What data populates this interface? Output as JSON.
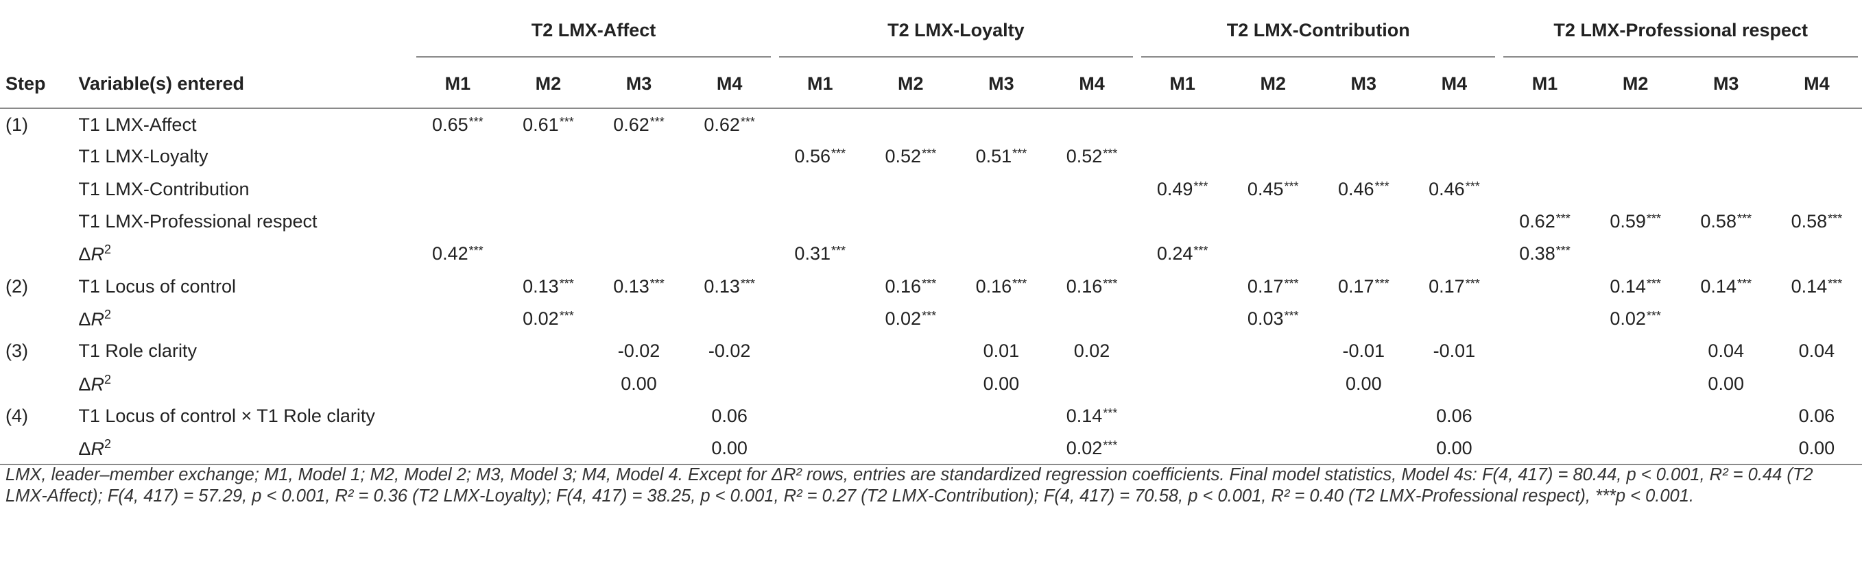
{
  "table": {
    "group_headers": [
      "T2 LMX-Affect",
      "T2 LMX-Loyalty",
      "T2 LMX-Contribution",
      "T2 LMX-Professional respect"
    ],
    "step_header": "Step",
    "variable_header": "Variable(s) entered",
    "model_headers": [
      "M1",
      "M2",
      "M3",
      "M4",
      "M1",
      "M2",
      "M3",
      "M4",
      "M1",
      "M2",
      "M3",
      "M4",
      "M1",
      "M2",
      "M3",
      "M4"
    ],
    "delta_r2_label": {
      "symbol": "ΔR",
      "sup": "2"
    },
    "rows": [
      {
        "step": "(1)",
        "variable": "T1 LMX-Affect",
        "values": [
          "0.65",
          "0.61",
          "0.62",
          "0.62",
          "",
          "",
          "",
          "",
          "",
          "",
          "",
          "",
          "",
          "",
          "",
          ""
        ],
        "sig": [
          "***",
          "***",
          "***",
          "***",
          "",
          "",
          "",
          "",
          "",
          "",
          "",
          "",
          "",
          "",
          "",
          ""
        ]
      },
      {
        "step": "",
        "variable": "T1 LMX-Loyalty",
        "values": [
          "",
          "",
          "",
          "",
          "0.56",
          "0.52",
          "0.51",
          "0.52",
          "",
          "",
          "",
          "",
          "",
          "",
          "",
          ""
        ],
        "sig": [
          "",
          "",
          "",
          "",
          "***",
          "***",
          "***",
          "***",
          "",
          "",
          "",
          "",
          "",
          "",
          "",
          ""
        ]
      },
      {
        "step": "",
        "variable": "T1 LMX-Contribution",
        "values": [
          "",
          "",
          "",
          "",
          "",
          "",
          "",
          "",
          "0.49",
          "0.45",
          "0.46",
          "0.46",
          "",
          "",
          "",
          ""
        ],
        "sig": [
          "",
          "",
          "",
          "",
          "",
          "",
          "",
          "",
          "***",
          "***",
          "***",
          "***",
          "",
          "",
          "",
          ""
        ]
      },
      {
        "step": "",
        "variable": "T1 LMX-Professional respect",
        "values": [
          "",
          "",
          "",
          "",
          "",
          "",
          "",
          "",
          "",
          "",
          "",
          "",
          "0.62",
          "0.59",
          "0.58",
          "0.58"
        ],
        "sig": [
          "",
          "",
          "",
          "",
          "",
          "",
          "",
          "",
          "",
          "",
          "",
          "",
          "***",
          "***",
          "***",
          "***"
        ]
      },
      {
        "step": "",
        "variable": "ΔR²",
        "is_delta": true,
        "values": [
          "0.42",
          "",
          "",
          "",
          "0.31",
          "",
          "",
          "",
          "0.24",
          "",
          "",
          "",
          "0.38",
          "",
          "",
          ""
        ],
        "sig": [
          "***",
          "",
          "",
          "",
          "***",
          "",
          "",
          "",
          "***",
          "",
          "",
          "",
          "***",
          "",
          "",
          ""
        ]
      },
      {
        "step": "(2)",
        "variable": "T1 Locus of control",
        "values": [
          "",
          "0.13",
          "0.13",
          "0.13",
          "",
          "0.16",
          "0.16",
          "0.16",
          "",
          "0.17",
          "0.17",
          "0.17",
          "",
          "0.14",
          "0.14",
          "0.14"
        ],
        "sig": [
          "",
          "***",
          "***",
          "***",
          "",
          "***",
          "***",
          "***",
          "",
          "***",
          "***",
          "***",
          "",
          "***",
          "***",
          "***"
        ]
      },
      {
        "step": "",
        "variable": "ΔR²",
        "is_delta": true,
        "values": [
          "",
          "0.02",
          "",
          "",
          "",
          "0.02",
          "",
          "",
          "",
          "0.03",
          "",
          "",
          "",
          "0.02",
          "",
          ""
        ],
        "sig": [
          "",
          "***",
          "",
          "",
          "",
          "***",
          "",
          "",
          "",
          "***",
          "",
          "",
          "",
          "***",
          "",
          ""
        ]
      },
      {
        "step": "(3)",
        "variable": "T1 Role clarity",
        "values": [
          "",
          "",
          "-0.02",
          "-0.02",
          "",
          "",
          "0.01",
          "0.02",
          "",
          "",
          "-0.01",
          "-0.01",
          "",
          "",
          "0.04",
          "0.04"
        ],
        "sig": [
          "",
          "",
          "",
          "",
          "",
          "",
          "",
          "",
          "",
          "",
          "",
          "",
          "",
          "",
          "",
          ""
        ]
      },
      {
        "step": "",
        "variable": "ΔR²",
        "is_delta": true,
        "values": [
          "",
          "",
          "0.00",
          "",
          "",
          "",
          "0.00",
          "",
          "",
          "",
          "0.00",
          "",
          "",
          "",
          "0.00",
          ""
        ],
        "sig": [
          "",
          "",
          "",
          "",
          "",
          "",
          "",
          "",
          "",
          "",
          "",
          "",
          "",
          "",
          "",
          ""
        ]
      },
      {
        "step": "(4)",
        "variable": "T1 Locus of control × T1 Role clarity",
        "values": [
          "",
          "",
          "",
          "0.06",
          "",
          "",
          "",
          "0.14",
          "",
          "",
          "",
          "0.06",
          "",
          "",
          "",
          "0.06"
        ],
        "sig": [
          "",
          "",
          "",
          "",
          "",
          "",
          "",
          "***",
          "",
          "",
          "",
          "",
          "",
          "",
          "",
          ""
        ]
      },
      {
        "step": "",
        "variable": "ΔR²",
        "is_delta": true,
        "values": [
          "",
          "",
          "",
          "0.00",
          "",
          "",
          "",
          "0.02",
          "",
          "",
          "",
          "0.00",
          "",
          "",
          "",
          "0.00"
        ],
        "sig": [
          "",
          "",
          "",
          "",
          "",
          "",
          "",
          "***",
          "",
          "",
          "",
          "",
          "",
          "",
          "",
          ""
        ]
      }
    ]
  },
  "footnote": "LMX, leader–member exchange; M1, Model 1; M2, Model 2; M3, Model 3; M4, Model 4. Except for ΔR² rows, entries are standardized regression coefficients. Final model statistics, Model 4s: F(4, 417) = 80.44, p < 0.001, R² = 0.44 (T2 LMX-Affect); F(4, 417) = 57.29, p < 0.001, R² = 0.36 (T2 LMX-Loyalty); F(4, 417) = 38.25, p < 0.001, R² = 0.27 (T2 LMX-Contribution); F(4, 417) = 70.58, p < 0.001, R² = 0.40 (T2 LMX-Professional respect), ***p < 0.001."
}
